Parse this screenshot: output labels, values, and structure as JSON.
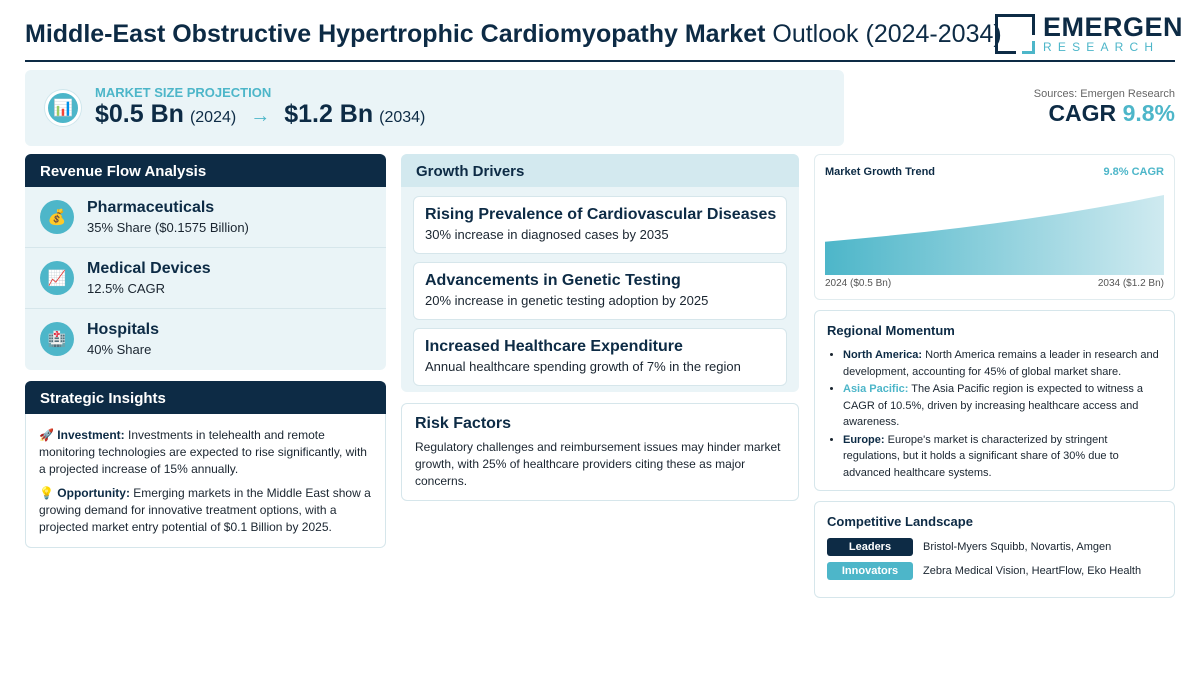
{
  "header": {
    "title_bold": "Middle-East Obstructive Hypertrophic Cardiomyopathy Market",
    "title_rest": "Outlook (2024-2034)",
    "logo_name": "EMERGEN",
    "logo_sub": "RESEARCH"
  },
  "projection": {
    "icon": "bar-chart-icon",
    "label": "MARKET SIZE PROJECTION",
    "start_value": "$0.5 Bn",
    "start_year": "(2024)",
    "arrow": "→",
    "end_value": "$1.2 Bn",
    "end_year": "(2034)"
  },
  "summary": {
    "sources": "Sources: Emergen Research",
    "cagr_label": "CAGR",
    "cagr_value": "9.8%"
  },
  "revenue": {
    "title": "Revenue Flow Analysis",
    "items": [
      {
        "icon": "money-bag-icon",
        "glyph": "💰",
        "title": "Pharmaceuticals",
        "sub": "35% Share ($0.1575 Billion)"
      },
      {
        "icon": "chart-up-icon",
        "glyph": "📈",
        "title": "Medical Devices",
        "sub": "12.5% CAGR"
      },
      {
        "icon": "hospital-icon",
        "glyph": "🏥",
        "title": "Hospitals",
        "sub": "40% Share"
      }
    ]
  },
  "insights": {
    "title": "Strategic Insights",
    "investment_icon": "🚀",
    "investment_label": "Investment:",
    "investment_text": "Investments in telehealth and remote monitoring technologies are expected to rise significantly, with a projected increase of 15% annually.",
    "opportunity_icon": "💡",
    "opportunity_label": "Opportunity:",
    "opportunity_text": "Emerging markets in the Middle East show a growing demand for innovative treatment options, with a projected market entry potential of $0.1 Billion by 2025."
  },
  "drivers": {
    "title": "Growth Drivers",
    "items": [
      {
        "title": "Rising Prevalence of Cardiovascular Diseases",
        "sub": "30% increase in diagnosed cases by 2035"
      },
      {
        "title": "Advancements in Genetic Testing",
        "sub": "20% increase in genetic testing adoption by 2025"
      },
      {
        "title": "Increased Healthcare Expenditure",
        "sub": "Annual healthcare spending growth of 7% in the region"
      }
    ]
  },
  "risk": {
    "title": "Risk Factors",
    "text": "Regulatory challenges and reimbursement issues may hinder market growth, with 25% of healthcare providers citing these as major concerns."
  },
  "trend": {
    "title": "Market Growth Trend",
    "cagr": "9.8% CAGR",
    "x_start": "2024 ($0.5 Bn)",
    "x_end": "2034 ($1.2 Bn)"
  },
  "chart_data": {
    "type": "area",
    "title": "Market Growth Trend",
    "x": [
      2024,
      2034
    ],
    "y": [
      0.5,
      1.2
    ],
    "unit": "$ Bn",
    "cagr": "9.8%"
  },
  "regional": {
    "title": "Regional Momentum",
    "items": [
      {
        "label": "North America:",
        "text": "North America remains a leader in research and development, accounting for 45% of global market share."
      },
      {
        "label": "Asia Pacific:",
        "text": "The Asia Pacific region is expected to witness a CAGR of 10.5%, driven by increasing healthcare access and awareness."
      },
      {
        "label": "Europe:",
        "text": "Europe's market is characterized by stringent regulations, but it holds a significant share of 30% due to advanced healthcare systems."
      }
    ]
  },
  "competitive": {
    "title": "Competitive Landscape",
    "rows": [
      {
        "tag": "Leaders",
        "names": "Bristol-Myers Squibb, Novartis, Amgen",
        "color": "#0d2b45"
      },
      {
        "tag": "Innovators",
        "names": "Zebra Medical Vision, HeartFlow, Eko Health",
        "color": "#4db6c9"
      }
    ]
  },
  "colors": {
    "navy": "#0d2b45",
    "teal": "#4db6c9",
    "panel": "#eaf4f7"
  }
}
